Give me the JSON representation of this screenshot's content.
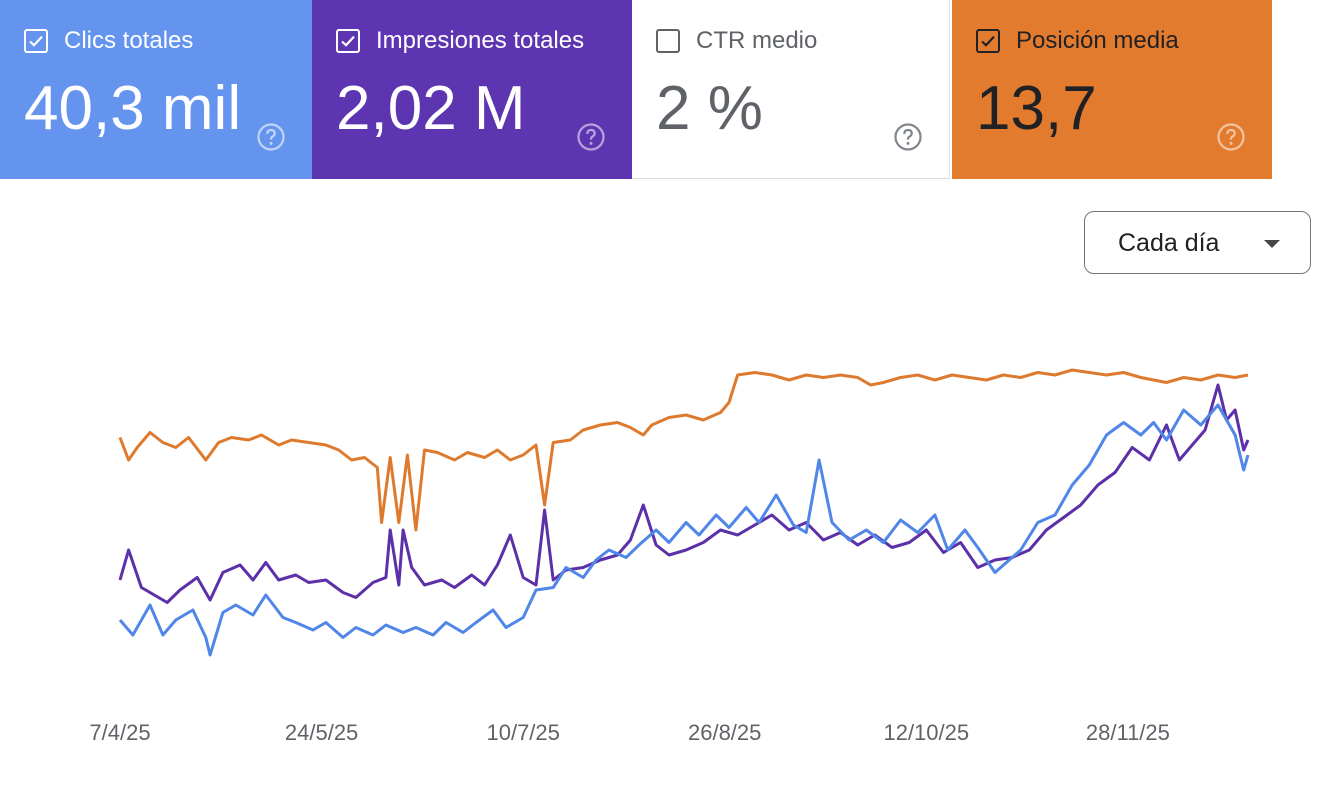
{
  "colors": {
    "clicks": "#6594ef",
    "impressions": "#5e35b1",
    "ctr": "#ffffff",
    "position": "#e37b2e",
    "clicks_line": "#4f86e8",
    "impressions_line": "#5b30a8",
    "position_line": "#de7a2e"
  },
  "metrics": [
    {
      "label": "Clics totales",
      "value": "40,3 mil",
      "checked": true
    },
    {
      "label": "Impresiones totales",
      "value": "2,02 M",
      "checked": true
    },
    {
      "label": "CTR medio",
      "value": "2 %",
      "checked": false
    },
    {
      "label": "Posición media",
      "value": "13,7",
      "checked": true
    }
  ],
  "dropdown": {
    "label": "Cada día",
    "icon": "arrow-drop-down-icon"
  },
  "icons": {
    "checkbox": "checkbox-icon",
    "help": "help-circle-icon"
  },
  "chart_data": {
    "type": "line",
    "title": "",
    "xlabel": "",
    "ylabel": "",
    "x_ticks": [
      "7/4/25",
      "24/5/25",
      "10/7/25",
      "26/8/25",
      "12/10/25",
      "28/11/25"
    ],
    "x_tick_days": [
      0,
      47,
      94,
      141,
      188,
      235
    ],
    "x_range_days": [
      0,
      263
    ],
    "grid": false,
    "series": [
      {
        "name": "Clics totales",
        "relative_level": [
          [
            0,
            0.16
          ],
          [
            3,
            0.1
          ],
          [
            7,
            0.22
          ],
          [
            10,
            0.1
          ],
          [
            13,
            0.16
          ],
          [
            17,
            0.2
          ],
          [
            20,
            0.09
          ],
          [
            21,
            0.02
          ],
          [
            24,
            0.19
          ],
          [
            27,
            0.22
          ],
          [
            31,
            0.18
          ],
          [
            34,
            0.26
          ],
          [
            38,
            0.17
          ],
          [
            41,
            0.15
          ],
          [
            45,
            0.12
          ],
          [
            48,
            0.15
          ],
          [
            52,
            0.09
          ],
          [
            55,
            0.13
          ],
          [
            59,
            0.1
          ],
          [
            62,
            0.14
          ],
          [
            66,
            0.11
          ],
          [
            69,
            0.13
          ],
          [
            73,
            0.1
          ],
          [
            76,
            0.15
          ],
          [
            80,
            0.11
          ],
          [
            83,
            0.15
          ],
          [
            87,
            0.2
          ],
          [
            90,
            0.13
          ],
          [
            94,
            0.17
          ],
          [
            97,
            0.28
          ],
          [
            101,
            0.29
          ],
          [
            104,
            0.37
          ],
          [
            108,
            0.33
          ],
          [
            111,
            0.4
          ],
          [
            114,
            0.44
          ],
          [
            118,
            0.41
          ],
          [
            121,
            0.46
          ],
          [
            125,
            0.52
          ],
          [
            128,
            0.47
          ],
          [
            132,
            0.55
          ],
          [
            135,
            0.5
          ],
          [
            139,
            0.58
          ],
          [
            142,
            0.53
          ],
          [
            146,
            0.61
          ],
          [
            149,
            0.55
          ],
          [
            153,
            0.66
          ],
          [
            157,
            0.54
          ],
          [
            160,
            0.51
          ],
          [
            163,
            0.8
          ],
          [
            166,
            0.55
          ],
          [
            170,
            0.48
          ],
          [
            174,
            0.52
          ],
          [
            178,
            0.47
          ],
          [
            182,
            0.56
          ],
          [
            186,
            0.51
          ],
          [
            190,
            0.58
          ],
          [
            193,
            0.44
          ],
          [
            197,
            0.52
          ],
          [
            200,
            0.45
          ],
          [
            204,
            0.35
          ],
          [
            206,
            0.38
          ],
          [
            210,
            0.44
          ],
          [
            214,
            0.55
          ],
          [
            218,
            0.58
          ],
          [
            222,
            0.7
          ],
          [
            226,
            0.78
          ],
          [
            230,
            0.9
          ],
          [
            234,
            0.95
          ],
          [
            238,
            0.9
          ],
          [
            241,
            0.95
          ],
          [
            244,
            0.88
          ],
          [
            248,
            1.0
          ],
          [
            252,
            0.94
          ],
          [
            256,
            1.02
          ],
          [
            260,
            0.9
          ],
          [
            262,
            0.76
          ],
          [
            263,
            0.82
          ]
        ]
      },
      {
        "name": "Impresiones totales",
        "relative_level": [
          [
            0,
            0.32
          ],
          [
            2,
            0.44
          ],
          [
            5,
            0.29
          ],
          [
            8,
            0.26
          ],
          [
            11,
            0.23
          ],
          [
            14,
            0.28
          ],
          [
            18,
            0.33
          ],
          [
            21,
            0.24
          ],
          [
            24,
            0.35
          ],
          [
            28,
            0.38
          ],
          [
            31,
            0.32
          ],
          [
            34,
            0.39
          ],
          [
            37,
            0.32
          ],
          [
            41,
            0.34
          ],
          [
            44,
            0.31
          ],
          [
            48,
            0.32
          ],
          [
            52,
            0.27
          ],
          [
            55,
            0.25
          ],
          [
            59,
            0.31
          ],
          [
            62,
            0.33
          ],
          [
            63,
            0.52
          ],
          [
            65,
            0.3
          ],
          [
            66,
            0.52
          ],
          [
            68,
            0.37
          ],
          [
            71,
            0.3
          ],
          [
            75,
            0.32
          ],
          [
            78,
            0.29
          ],
          [
            82,
            0.34
          ],
          [
            85,
            0.3
          ],
          [
            88,
            0.38
          ],
          [
            91,
            0.5
          ],
          [
            94,
            0.33
          ],
          [
            97,
            0.3
          ],
          [
            99,
            0.6
          ],
          [
            101,
            0.32
          ],
          [
            104,
            0.36
          ],
          [
            108,
            0.37
          ],
          [
            112,
            0.4
          ],
          [
            116,
            0.42
          ],
          [
            119,
            0.48
          ],
          [
            122,
            0.62
          ],
          [
            125,
            0.46
          ],
          [
            128,
            0.42
          ],
          [
            132,
            0.44
          ],
          [
            136,
            0.47
          ],
          [
            140,
            0.52
          ],
          [
            144,
            0.5
          ],
          [
            148,
            0.54
          ],
          [
            152,
            0.58
          ],
          [
            156,
            0.52
          ],
          [
            160,
            0.55
          ],
          [
            164,
            0.48
          ],
          [
            168,
            0.51
          ],
          [
            172,
            0.46
          ],
          [
            176,
            0.5
          ],
          [
            180,
            0.45
          ],
          [
            184,
            0.47
          ],
          [
            188,
            0.52
          ],
          [
            192,
            0.43
          ],
          [
            196,
            0.47
          ],
          [
            200,
            0.37
          ],
          [
            204,
            0.4
          ],
          [
            208,
            0.41
          ],
          [
            212,
            0.44
          ],
          [
            216,
            0.52
          ],
          [
            220,
            0.57
          ],
          [
            224,
            0.62
          ],
          [
            228,
            0.7
          ],
          [
            232,
            0.75
          ],
          [
            236,
            0.85
          ],
          [
            240,
            0.8
          ],
          [
            244,
            0.94
          ],
          [
            247,
            0.8
          ],
          [
            250,
            0.86
          ],
          [
            253,
            0.92
          ],
          [
            256,
            1.1
          ],
          [
            258,
            0.96
          ],
          [
            260,
            1.0
          ],
          [
            262,
            0.84
          ],
          [
            263,
            0.88
          ]
        ]
      },
      {
        "name": "Posición media",
        "relative_level": [
          [
            0,
            0.89
          ],
          [
            2,
            0.8
          ],
          [
            4,
            0.85
          ],
          [
            7,
            0.91
          ],
          [
            10,
            0.87
          ],
          [
            13,
            0.85
          ],
          [
            16,
            0.89
          ],
          [
            20,
            0.8
          ],
          [
            23,
            0.87
          ],
          [
            26,
            0.89
          ],
          [
            30,
            0.88
          ],
          [
            33,
            0.9
          ],
          [
            37,
            0.86
          ],
          [
            40,
            0.88
          ],
          [
            44,
            0.87
          ],
          [
            48,
            0.86
          ],
          [
            51,
            0.84
          ],
          [
            54,
            0.8
          ],
          [
            57,
            0.81
          ],
          [
            60,
            0.77
          ],
          [
            61,
            0.55
          ],
          [
            63,
            0.81
          ],
          [
            65,
            0.55
          ],
          [
            67,
            0.82
          ],
          [
            69,
            0.52
          ],
          [
            71,
            0.84
          ],
          [
            74,
            0.83
          ],
          [
            78,
            0.8
          ],
          [
            81,
            0.83
          ],
          [
            85,
            0.81
          ],
          [
            88,
            0.84
          ],
          [
            91,
            0.8
          ],
          [
            94,
            0.82
          ],
          [
            97,
            0.86
          ],
          [
            99,
            0.62
          ],
          [
            101,
            0.87
          ],
          [
            105,
            0.88
          ],
          [
            108,
            0.92
          ],
          [
            112,
            0.94
          ],
          [
            116,
            0.95
          ],
          [
            119,
            0.93
          ],
          [
            122,
            0.9
          ],
          [
            124,
            0.94
          ],
          [
            128,
            0.97
          ],
          [
            132,
            0.98
          ],
          [
            136,
            0.96
          ],
          [
            140,
            0.99
          ],
          [
            142,
            1.03
          ],
          [
            144,
            1.14
          ],
          [
            148,
            1.15
          ],
          [
            152,
            1.14
          ],
          [
            156,
            1.12
          ],
          [
            160,
            1.14
          ],
          [
            164,
            1.13
          ],
          [
            168,
            1.14
          ],
          [
            172,
            1.13
          ],
          [
            175,
            1.1
          ],
          [
            178,
            1.11
          ],
          [
            182,
            1.13
          ],
          [
            186,
            1.14
          ],
          [
            190,
            1.12
          ],
          [
            194,
            1.14
          ],
          [
            198,
            1.13
          ],
          [
            202,
            1.12
          ],
          [
            206,
            1.14
          ],
          [
            210,
            1.13
          ],
          [
            214,
            1.15
          ],
          [
            218,
            1.14
          ],
          [
            222,
            1.16
          ],
          [
            226,
            1.15
          ],
          [
            230,
            1.14
          ],
          [
            234,
            1.15
          ],
          [
            238,
            1.13
          ],
          [
            241,
            1.12
          ],
          [
            244,
            1.11
          ],
          [
            248,
            1.13
          ],
          [
            252,
            1.12
          ],
          [
            256,
            1.14
          ],
          [
            260,
            1.13
          ],
          [
            263,
            1.14
          ]
        ]
      }
    ]
  }
}
